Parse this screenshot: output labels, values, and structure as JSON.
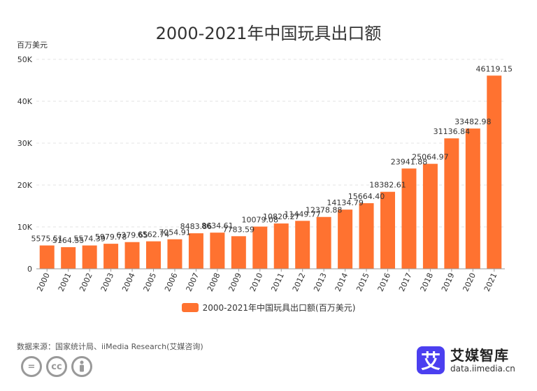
{
  "chart_data": {
    "type": "bar",
    "title": "2000-2021年中国玩具出口额",
    "ylabel": "百万美元",
    "categories": [
      "2000",
      "2001",
      "2002",
      "2003",
      "2004",
      "2005",
      "2006",
      "2007",
      "2008",
      "2009",
      "2010",
      "2011",
      "2012",
      "2013",
      "2014",
      "2015",
      "2016",
      "2017",
      "2018",
      "2019",
      "2020",
      "2021"
    ],
    "value_labels": [
      "5575.51",
      "5164.55",
      "5574.39",
      "5979.78",
      "6379.65",
      "6562.74",
      "7054.91",
      "8483.86",
      "8634.61",
      "7783.59",
      "10079.08",
      "10820.27",
      "11449.77",
      "12378.88",
      "14134.79",
      "15664.40",
      "18382.61",
      "23941.88",
      "25064.97",
      "31136.84",
      "33482.98",
      "46119.15"
    ],
    "series": [
      {
        "name": "2000-2021年中国玩具出口额(百万美元)",
        "values": [
          5575.51,
          5164.55,
          5574.39,
          5979.78,
          6379.65,
          6562.74,
          7054.91,
          8483.86,
          8634.61,
          7783.59,
          10079.08,
          10820.27,
          11449.77,
          12378.88,
          14134.79,
          15664.4,
          18382.61,
          23941.88,
          25064.97,
          31136.84,
          33482.98,
          46119.15
        ]
      }
    ],
    "ylim": [
      0,
      50000
    ],
    "yticks": [
      0,
      10000,
      20000,
      30000,
      40000,
      50000
    ],
    "ytick_labels": [
      "0",
      "10K",
      "20K",
      "30K",
      "40K",
      "50K"
    ],
    "grid": true,
    "legend_position": "bottom",
    "bar_color": "#ff7230"
  },
  "footer": {
    "source": "数据来源：国家统计局、iiMedia Research(艾媒咨询)",
    "cc_icons": [
      "equals-icon",
      "cc-icon",
      "person-icon"
    ]
  },
  "brand": {
    "logo_char": "艾",
    "name": "艾媒智库",
    "url": "data.iimedia.cn"
  }
}
